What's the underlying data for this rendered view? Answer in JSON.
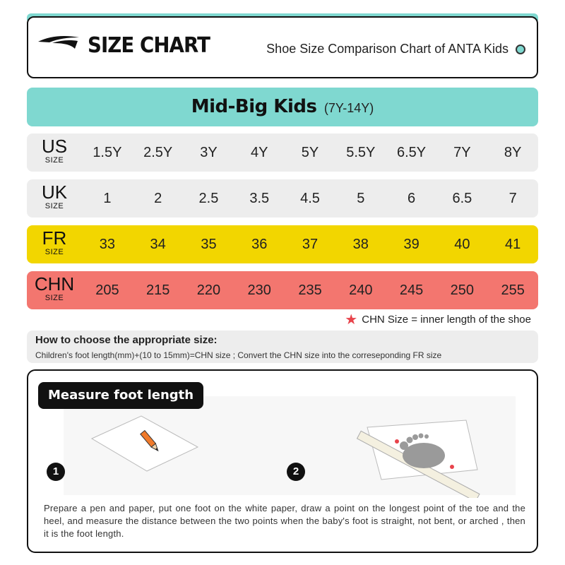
{
  "header": {
    "brand_title": "SIZE CHART",
    "subtitle": "Shoe Size Comparison Chart of ANTA Kids"
  },
  "kids": {
    "title": "Mid-Big Kids",
    "range": "(7Y-14Y)"
  },
  "rows": {
    "us": {
      "label": "US",
      "sublabel": "SIZE",
      "values": [
        "1.5Y",
        "2.5Y",
        "3Y",
        "4Y",
        "5Y",
        "5.5Y",
        "6.5Y",
        "7Y",
        "8Y"
      ]
    },
    "uk": {
      "label": "UK",
      "sublabel": "SIZE",
      "values": [
        "1",
        "2",
        "2.5",
        "3.5",
        "4.5",
        "5",
        "6",
        "6.5",
        "7"
      ]
    },
    "fr": {
      "label": "FR",
      "sublabel": "SIZE",
      "values": [
        "33",
        "34",
        "35",
        "36",
        "37",
        "38",
        "39",
        "40",
        "41"
      ]
    },
    "chn": {
      "label": "CHN",
      "sublabel": "SIZE",
      "values": [
        "205",
        "215",
        "220",
        "230",
        "235",
        "240",
        "245",
        "250",
        "255"
      ]
    }
  },
  "note": "CHN Size = inner length of the shoe",
  "howto": {
    "title": "How to choose the appropriate size:",
    "text": "Children's foot length(mm)+(10 to 15mm)=CHN size ; Convert the CHN size into the correseponding FR size"
  },
  "measure": {
    "title": "Measure foot length",
    "step1": "1",
    "step2": "2",
    "description": "Prepare a pen and paper, put one foot on the white paper, draw a point on the longest point of the toe and the heel, and measure the distance between the two points when the baby's foot is straight, not bent, or arched , then it is the foot length."
  },
  "colors": {
    "teal": "#7fd8d0",
    "yellow": "#f2d600",
    "coral": "#f3766f",
    "gray": "#ededed"
  }
}
